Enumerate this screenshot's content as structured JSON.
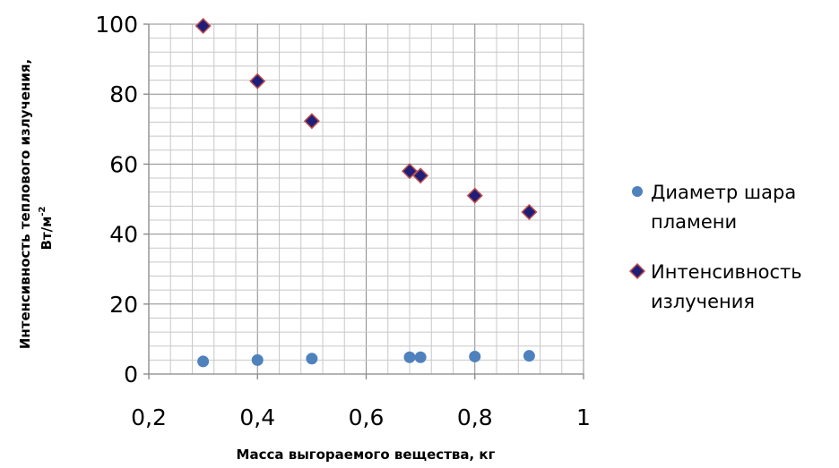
{
  "chart_data": {
    "type": "scatter",
    "title": "",
    "xlabel": "Масса выгораемого вещества, кг",
    "ylabel_line1": "Интенсивность теплового излучения,",
    "ylabel_line2_base": "Вт/м",
    "ylabel_line2_sup": "-2",
    "xlim": [
      0.2,
      1
    ],
    "ylim": [
      0,
      100
    ],
    "x_ticks": [
      0.2,
      0.4,
      0.6,
      0.8,
      1
    ],
    "x_tick_labels": [
      "0,2",
      "0,4",
      "0,6",
      "0,8",
      "1"
    ],
    "y_ticks": [
      0,
      20,
      40,
      60,
      80,
      100
    ],
    "y_tick_labels": [
      "0",
      "20",
      "40",
      "60",
      "80",
      "100"
    ],
    "grid": true,
    "legend_position": "right",
    "series": [
      {
        "name_line1": "Диаметр шара",
        "name_line2": "пламени",
        "marker": "circle",
        "color": "#4f81bd",
        "x": [
          0.3,
          0.4,
          0.5,
          0.68,
          0.7,
          0.8,
          0.9
        ],
        "y": [
          3.6,
          4.0,
          4.4,
          4.8,
          4.8,
          5.0,
          5.2
        ]
      },
      {
        "name_line1": "Интенсивность",
        "name_line2": "излучения",
        "marker": "diamond",
        "color": "#1f1f7a",
        "stroke": "#c0504d",
        "x": [
          0.3,
          0.4,
          0.5,
          0.68,
          0.7,
          0.8,
          0.9
        ],
        "y": [
          99.5,
          83.7,
          72.3,
          58.0,
          56.7,
          51.0,
          46.3
        ]
      }
    ]
  }
}
